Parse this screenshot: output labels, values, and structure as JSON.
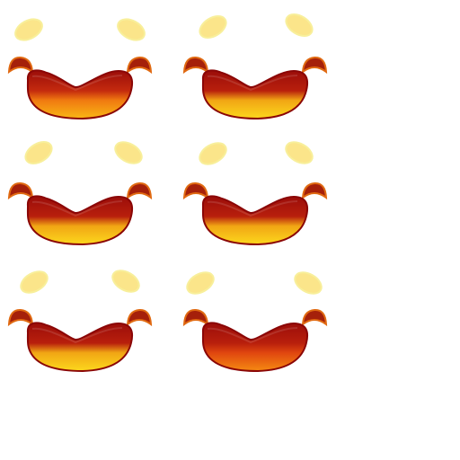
{
  "sprite_sheet": {
    "layout": {
      "columns": 2,
      "rows": 3
    },
    "frames": [
      {
        "name": "mouth-frame",
        "icon": "mouth-sprite-icon",
        "shades": [
          "#9b0d0a",
          "#c42a0e",
          "#f07a10",
          "#f9b715"
        ]
      },
      {
        "name": "mouth-frame",
        "icon": "mouth-sprite-icon",
        "shades": [
          "#9b0d0a",
          "#b81f0c",
          "#f1a614",
          "#fcd81d"
        ]
      },
      {
        "name": "mouth-frame",
        "icon": "mouth-sprite-icon",
        "shades": [
          "#9b0d0a",
          "#b81f0c",
          "#f1a614",
          "#fcd81d"
        ]
      },
      {
        "name": "mouth-frame",
        "icon": "mouth-sprite-icon",
        "shades": [
          "#9b0d0a",
          "#b81f0c",
          "#f1a614",
          "#fcd81d"
        ]
      },
      {
        "name": "mouth-frame",
        "icon": "mouth-sprite-icon",
        "shades": [
          "#9b0d0a",
          "#b81f0c",
          "#f1a614",
          "#fcd81d"
        ]
      },
      {
        "name": "mouth-frame",
        "icon": "mouth-sprite-icon",
        "shades": [
          "#9b0d0a",
          "#b81f0c",
          "#e0460f",
          "#f58a12"
        ]
      }
    ],
    "colors": {
      "outline": "#8a0606",
      "cheek_fill": "#a5200a",
      "cheek_edge": "#e06a12",
      "highlight": "#fbe58a",
      "highlight_edge": "#f8ef9b"
    }
  }
}
